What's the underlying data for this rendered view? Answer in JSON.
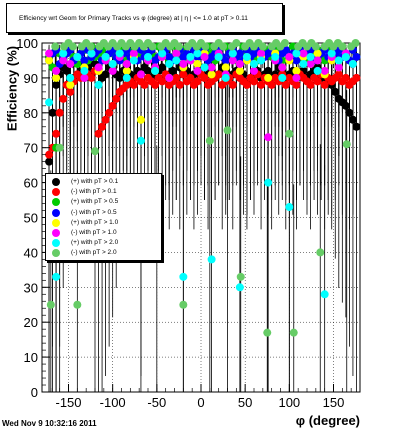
{
  "chart_data": {
    "type": "scatter",
    "title": "Efficiency wrt Geom for Primary Tracks vs φ (degree) at | η | <= 1.0 at pT > 0.11",
    "xlabel": "φ (degree)",
    "ylabel": "Efficiency (%)",
    "xlim": [
      -180,
      180
    ],
    "ylim": [
      0,
      100
    ],
    "x_ticks": [
      -150,
      -100,
      -50,
      0,
      50,
      100,
      150
    ],
    "y_ticks": [
      0,
      10,
      20,
      30,
      40,
      50,
      60,
      70,
      80,
      90,
      100
    ],
    "grid": true,
    "legend_position": "left-middle",
    "series": [
      {
        "name": "(+) with pT > 0.1",
        "color": "#000000",
        "x": [
          -172,
          -168,
          -164,
          -160,
          -156,
          -152,
          -148,
          -144,
          -140,
          -136,
          -132,
          -128,
          -124,
          -120,
          -116,
          -112,
          -108,
          -104,
          -100,
          -96,
          -92,
          -88,
          -84,
          -80,
          -76,
          -72,
          -68,
          -64,
          -60,
          -56,
          -52,
          -48,
          -44,
          -40,
          -36,
          -32,
          -28,
          -24,
          -20,
          -16,
          -12,
          -8,
          -4,
          0,
          4,
          8,
          12,
          16,
          20,
          24,
          28,
          32,
          36,
          40,
          44,
          48,
          52,
          56,
          60,
          64,
          68,
          72,
          76,
          80,
          84,
          88,
          92,
          96,
          100,
          104,
          108,
          112,
          116,
          120,
          124,
          128,
          132,
          136,
          140,
          144,
          148,
          152,
          156,
          160,
          164,
          168,
          172,
          176
        ],
        "y": [
          66,
          80,
          88,
          91,
          93,
          92,
          89,
          90,
          91,
          92,
          90,
          93,
          91,
          94,
          92,
          90,
          91,
          93,
          92,
          91,
          90,
          92,
          93,
          91,
          90,
          92,
          91,
          93,
          92,
          90,
          91,
          92,
          93,
          90,
          91,
          92,
          90,
          93,
          91,
          92,
          90,
          91,
          92,
          93,
          90,
          91,
          92,
          90,
          91,
          93,
          92,
          90,
          91,
          92,
          90,
          91,
          89,
          90,
          91,
          92,
          90,
          91,
          92,
          90,
          91,
          93,
          92,
          90,
          91,
          92,
          90,
          91,
          92,
          90,
          91,
          92,
          93,
          90,
          91,
          89,
          88,
          86,
          84,
          83,
          82,
          80,
          78,
          76
        ]
      },
      {
        "name": "(-) with pT > 0.1",
        "color": "#ff0000",
        "x": [
          -172,
          -168,
          -164,
          -160,
          -156,
          -152,
          -148,
          -144,
          -140,
          -136,
          -132,
          -128,
          -124,
          -120,
          -116,
          -112,
          -108,
          -104,
          -100,
          -96,
          -92,
          -88,
          -84,
          -80,
          -76,
          -72,
          -68,
          -64,
          -60,
          -56,
          -52,
          -48,
          -44,
          -40,
          -36,
          -32,
          -28,
          -24,
          -20,
          -16,
          -12,
          -8,
          -4,
          0,
          4,
          8,
          12,
          16,
          20,
          24,
          28,
          32,
          36,
          40,
          44,
          48,
          52,
          56,
          60,
          64,
          68,
          72,
          76,
          80,
          84,
          88,
          92,
          96,
          100,
          104,
          108,
          112,
          116,
          120,
          124,
          128,
          132,
          136,
          140,
          144,
          148,
          152,
          156,
          160,
          164,
          168,
          172,
          176
        ],
        "y": [
          68,
          70,
          74,
          80,
          84,
          88,
          86,
          89,
          91,
          90,
          92,
          91,
          90,
          92,
          74,
          76,
          78,
          80,
          82,
          84,
          86,
          87,
          88,
          89,
          88,
          90,
          89,
          88,
          90,
          89,
          88,
          90,
          89,
          91,
          88,
          89,
          90,
          88,
          91,
          89,
          90,
          88,
          89,
          91,
          90,
          88,
          89,
          90,
          91,
          88,
          89,
          90,
          88,
          91,
          90,
          89,
          88,
          90,
          89,
          91,
          88,
          90,
          89,
          88,
          90,
          89,
          91,
          88,
          90,
          89,
          88,
          91,
          90,
          89,
          88,
          90,
          89,
          91,
          88,
          90,
          89,
          90,
          91,
          89,
          90,
          88,
          89,
          90
        ]
      },
      {
        "name": "(+) with pT > 0.5",
        "color": "#00cc00",
        "x": [
          -172,
          -168,
          -164,
          -160,
          -156,
          -152,
          -148,
          -144,
          -140,
          -136,
          -132,
          -128,
          -124,
          -120,
          -116,
          -112,
          -108,
          -104,
          -100,
          -96,
          -92,
          -88,
          -84,
          -80,
          -76,
          -72,
          -68,
          -64,
          -60,
          -56,
          -52,
          -48,
          -44,
          -40,
          -36,
          -32,
          -28,
          -24,
          -20,
          -16,
          -12,
          -8,
          -4,
          0,
          4,
          8,
          12,
          16,
          20,
          24,
          28,
          32,
          36,
          40,
          44,
          48,
          52,
          56,
          60,
          64,
          68,
          72,
          76,
          80,
          84,
          88,
          92,
          96,
          100,
          104,
          108,
          112,
          116,
          120,
          124,
          128,
          132,
          136,
          140,
          144,
          148,
          152,
          156,
          160,
          164,
          168,
          172,
          176
        ],
        "y": [
          96,
          93,
          70,
          97,
          95,
          98,
          99,
          96,
          94,
          97,
          98,
          95,
          99,
          96,
          97,
          98,
          95,
          99,
          97,
          96,
          98,
          99,
          95,
          97,
          98,
          96,
          99,
          97,
          95,
          98,
          96,
          99,
          97,
          98,
          95,
          96,
          99,
          97,
          98,
          96,
          95,
          99,
          97,
          98,
          96,
          99,
          97,
          95,
          98,
          96,
          99,
          97,
          98,
          95,
          96,
          99,
          97,
          98,
          96,
          95,
          99,
          97,
          98,
          96,
          99,
          97,
          95,
          98,
          96,
          99,
          97,
          98,
          95,
          96,
          99,
          97,
          98,
          96,
          95,
          99,
          97,
          98,
          96,
          99,
          97,
          95,
          98,
          96
        ]
      },
      {
        "name": "(-) with pT > 0.5",
        "color": "#0000ff",
        "x": [
          -172,
          -168,
          -164,
          -160,
          -156,
          -152,
          -148,
          -144,
          -140,
          -136,
          -132,
          -128,
          -124,
          -120,
          -116,
          -112,
          -108,
          -104,
          -100,
          -96,
          -92,
          -88,
          -84,
          -80,
          -76,
          -72,
          -68,
          -64,
          -60,
          -56,
          -52,
          -48,
          -44,
          -40,
          -36,
          -32,
          -28,
          -24,
          -20,
          -16,
          -12,
          -8,
          -4,
          0,
          4,
          8,
          12,
          16,
          20,
          24,
          28,
          32,
          36,
          40,
          44,
          48,
          52,
          56,
          60,
          64,
          68,
          72,
          76,
          80,
          84,
          88,
          92,
          96,
          100,
          104,
          108,
          112,
          116,
          120,
          124,
          128,
          132,
          136,
          140,
          144,
          148,
          152,
          156,
          160,
          164,
          168,
          172,
          176
        ],
        "y": [
          95,
          97,
          98,
          94,
          96,
          97,
          98,
          95,
          96,
          97,
          95,
          98,
          96,
          97,
          98,
          95,
          96,
          97,
          98,
          96,
          95,
          97,
          98,
          96,
          97,
          95,
          98,
          96,
          97,
          98,
          95,
          96,
          97,
          98,
          96,
          95,
          97,
          98,
          96,
          97,
          95,
          98,
          96,
          97,
          98,
          95,
          96,
          97,
          98,
          96,
          95,
          97,
          98,
          96,
          97,
          95,
          98,
          96,
          97,
          98,
          95,
          96,
          97,
          98,
          96,
          95,
          97,
          98,
          96,
          97,
          95,
          98,
          96,
          97,
          98,
          95,
          96,
          97,
          98,
          96,
          95,
          97,
          98,
          96,
          97,
          95,
          98,
          96
        ]
      },
      {
        "name": "(+) with pT > 1.0",
        "color": "#ffff00",
        "x": [
          -172,
          -164,
          -156,
          -148,
          -140,
          -132,
          -124,
          -116,
          -108,
          -100,
          -92,
          -84,
          -76,
          -68,
          -60,
          -52,
          -44,
          -36,
          -28,
          -20,
          -12,
          -4,
          4,
          12,
          20,
          28,
          36,
          44,
          52,
          60,
          68,
          76,
          84,
          92,
          100,
          108,
          116,
          124,
          132,
          140,
          148,
          156,
          164,
          172
        ],
        "y": [
          95,
          90,
          97,
          88,
          96,
          93,
          97,
          92,
          96,
          94,
          97,
          92,
          96,
          78,
          95,
          92,
          96,
          90,
          97,
          93,
          95,
          94,
          97,
          91,
          96,
          93,
          97,
          92,
          95,
          94,
          96,
          90,
          97,
          93,
          95,
          92,
          96,
          94,
          97,
          91,
          95,
          93,
          96,
          94
        ]
      },
      {
        "name": "(-) with pT > 1.0",
        "color": "#ff00ff",
        "x": [
          -172,
          -164,
          -156,
          -148,
          -140,
          -132,
          -124,
          -116,
          -108,
          -100,
          -92,
          -84,
          -76,
          -68,
          -60,
          -52,
          -44,
          -36,
          -28,
          -20,
          -12,
          -4,
          4,
          12,
          20,
          28,
          36,
          44,
          52,
          60,
          68,
          76,
          84,
          92,
          100,
          108,
          116,
          124,
          132,
          140,
          148,
          156,
          164,
          172
        ],
        "y": [
          97,
          92,
          95,
          94,
          96,
          90,
          97,
          93,
          95,
          92,
          96,
          94,
          97,
          91,
          95,
          93,
          96,
          90,
          97,
          94,
          95,
          92,
          96,
          93,
          97,
          91,
          95,
          94,
          96,
          92,
          97,
          73,
          95,
          93,
          96,
          90,
          97,
          94,
          95,
          92,
          96,
          93,
          97,
          94
        ]
      },
      {
        "name": "(+) with pT > 2.0",
        "color": "#00ffff",
        "x": [
          -172,
          -164,
          -156,
          -148,
          -140,
          -132,
          -124,
          -116,
          -108,
          -100,
          -92,
          -84,
          -76,
          -68,
          -60,
          -52,
          -44,
          -36,
          -28,
          -20,
          -12,
          -4,
          4,
          12,
          20,
          28,
          36,
          44,
          52,
          60,
          68,
          76,
          84,
          92,
          100,
          108,
          116,
          124,
          132,
          140,
          148,
          156,
          164,
          172
        ],
        "y": [
          83,
          33,
          97,
          90,
          96,
          92,
          97,
          88,
          96,
          94,
          97,
          90,
          95,
          72,
          96,
          92,
          97,
          94,
          95,
          33,
          96,
          97,
          93,
          38,
          96,
          90,
          97,
          30,
          96,
          94,
          95,
          60,
          96,
          90,
          53,
          97,
          94,
          96,
          92,
          28,
          97,
          95,
          96,
          94
        ]
      },
      {
        "name": "(-) with pT > 2.0",
        "color": "#66cc66",
        "x": [
          -170,
          -165,
          -160,
          -155,
          -150,
          -145,
          -140,
          -135,
          -130,
          -125,
          -120,
          -115,
          -110,
          -105,
          -100,
          -95,
          -90,
          -85,
          -80,
          -75,
          -70,
          -65,
          -60,
          -55,
          -50,
          -45,
          -40,
          -35,
          -30,
          -25,
          -20,
          -15,
          -10,
          -5,
          0,
          5,
          10,
          15,
          20,
          25,
          30,
          35,
          40,
          45,
          50,
          55,
          60,
          65,
          70,
          75,
          80,
          85,
          90,
          95,
          100,
          105,
          110,
          115,
          120,
          125,
          130,
          135,
          140,
          145,
          150,
          155,
          160,
          165,
          170,
          175
        ],
        "y": [
          25,
          99,
          70,
          99,
          100,
          99,
          25,
          99,
          100,
          99,
          69,
          99,
          100,
          99,
          100,
          99,
          100,
          99,
          100,
          99,
          100,
          99,
          100,
          99,
          39,
          99,
          100,
          99,
          100,
          99,
          25,
          99,
          100,
          99,
          100,
          99,
          72,
          99,
          100,
          99,
          75,
          99,
          100,
          33,
          99,
          100,
          99,
          100,
          99,
          17,
          99,
          100,
          99,
          100,
          74,
          17,
          99,
          100,
          99,
          100,
          99,
          40,
          99,
          100,
          99,
          100,
          99,
          71,
          99,
          100
        ]
      }
    ]
  }
}
